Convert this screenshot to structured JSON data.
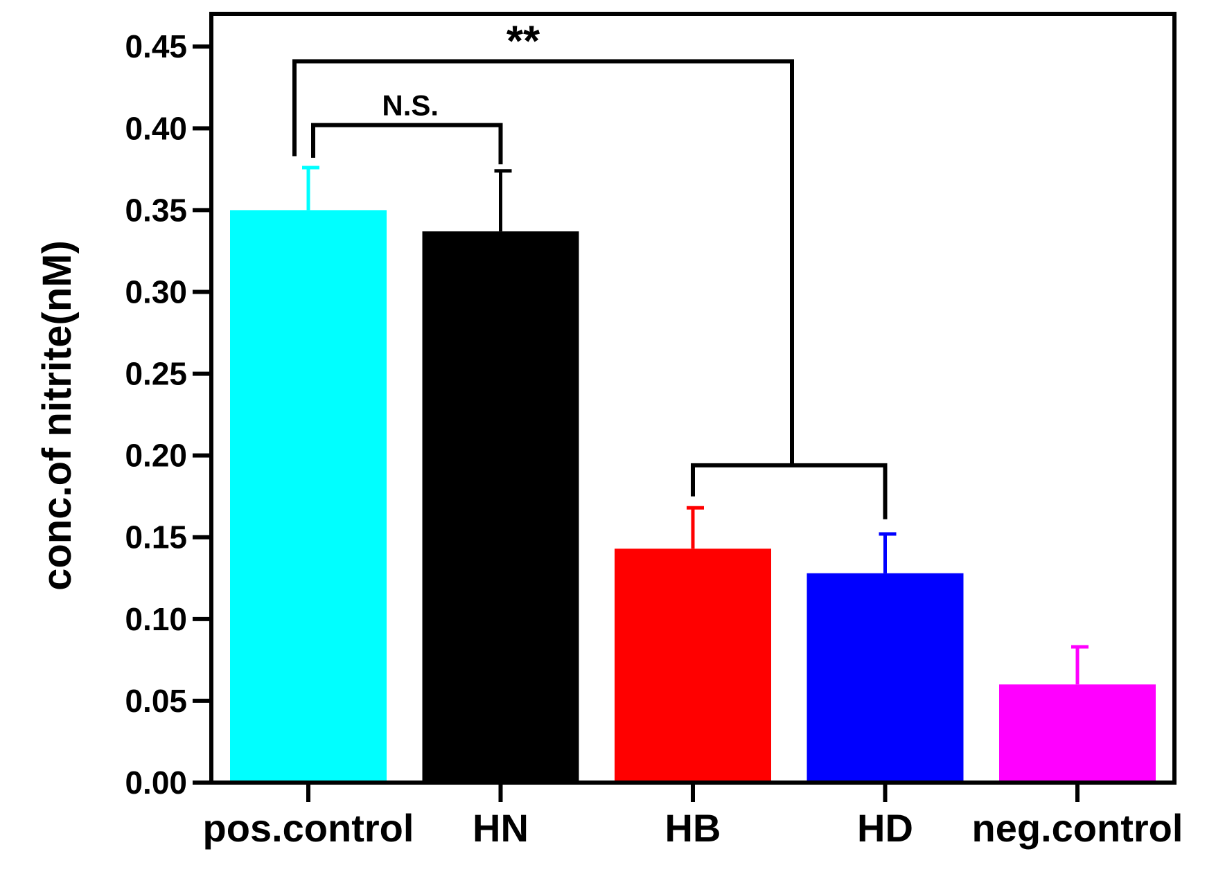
{
  "chart_data": {
    "type": "bar",
    "title": "",
    "xlabel": "",
    "ylabel": "conc.of nitrite(nM)",
    "ylim": [
      0,
      0.47
    ],
    "yticks": [
      "0.00",
      "0.05",
      "0.10",
      "0.15",
      "0.20",
      "0.25",
      "0.30",
      "0.35",
      "0.40",
      "0.45"
    ],
    "grid": false,
    "categories": [
      "pos.control",
      "HN",
      "HB",
      "HD",
      "neg.control"
    ],
    "values": [
      0.35,
      0.337,
      0.143,
      0.128,
      0.06
    ],
    "errors": [
      0.026,
      0.037,
      0.025,
      0.024,
      0.023
    ],
    "colors": [
      "#00FFFF",
      "#000000",
      "#FF0000",
      "#0000FF",
      "#FF00FF"
    ],
    "annotations": [
      {
        "label": "N.S.",
        "from": "pos.control",
        "to": "HN"
      },
      {
        "label": "**",
        "from": "pos.control",
        "to": [
          "HB",
          "HD"
        ]
      }
    ]
  }
}
